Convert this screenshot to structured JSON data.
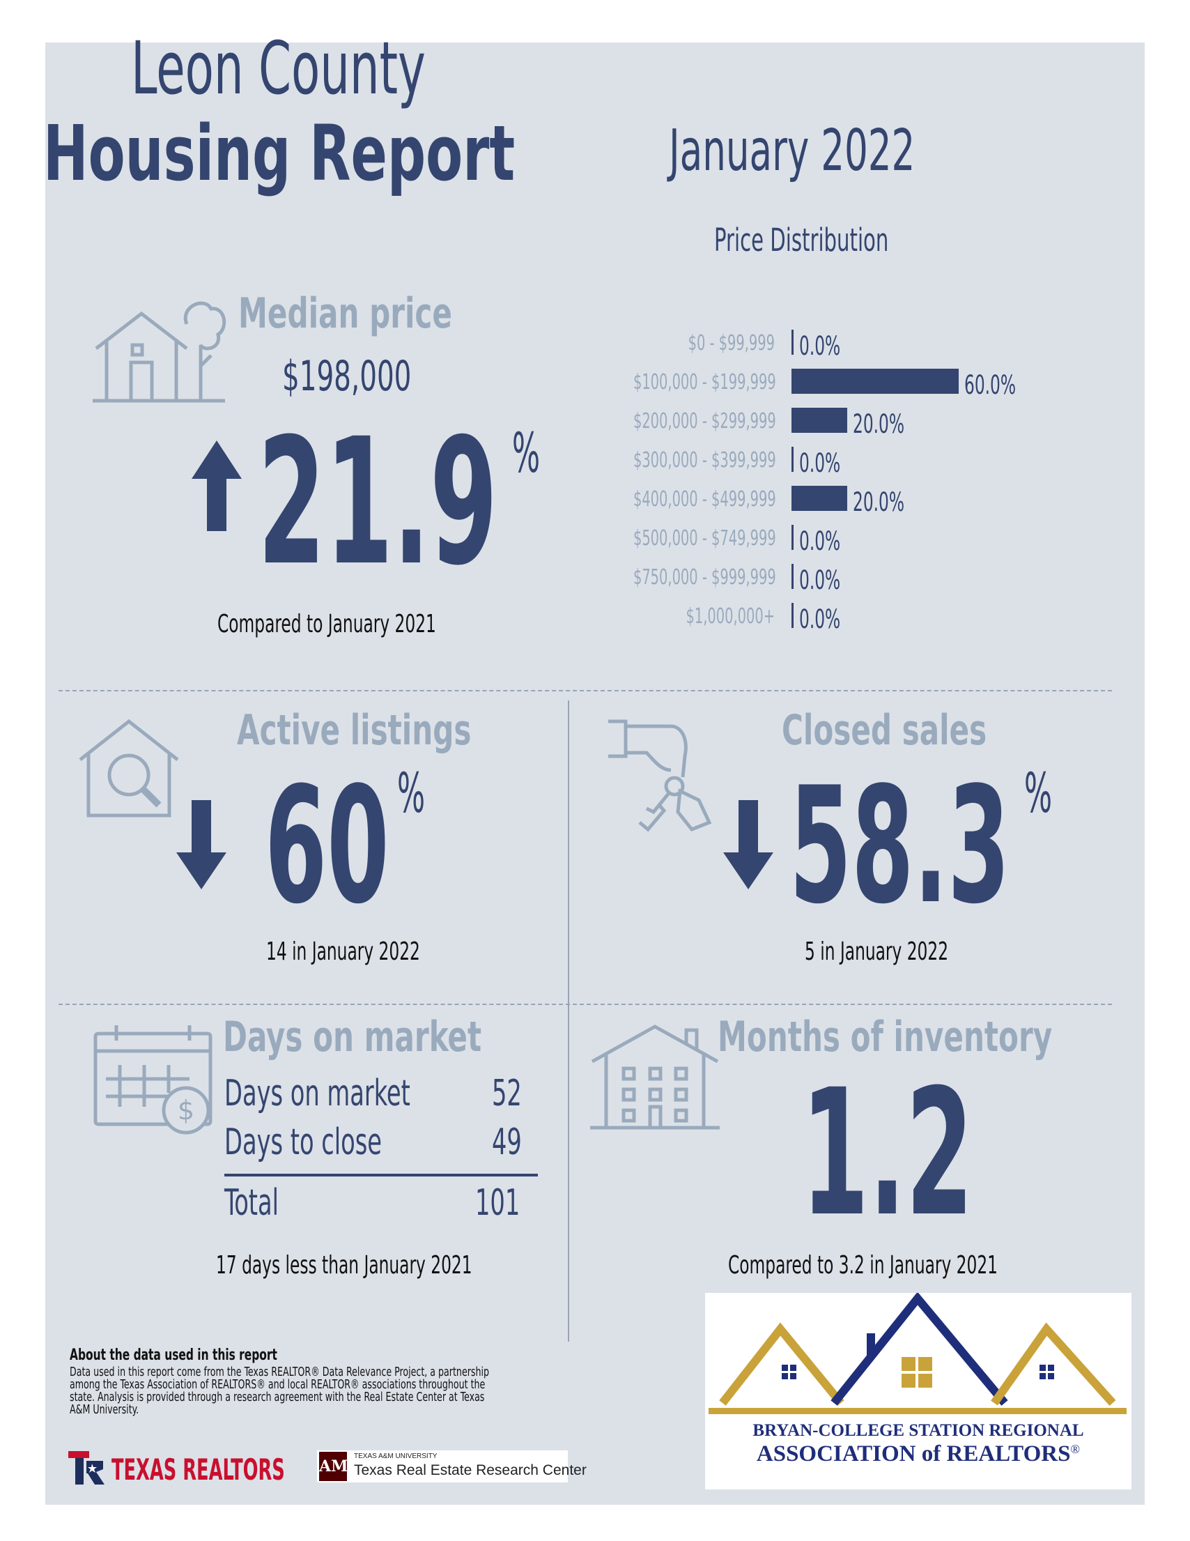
{
  "header": {
    "title_line1": "Leon County",
    "title_line2": "Housing Report",
    "month": "January 2022"
  },
  "median_price": {
    "label": "Median price",
    "value": "$198,000",
    "change": "21.9",
    "change_unit": "%",
    "direction": "up",
    "caption": "Compared to January 2021"
  },
  "price_distribution": {
    "title": "Price Distribution",
    "chart_data": {
      "type": "bar",
      "orientation": "horizontal",
      "title": "Price Distribution",
      "categories": [
        "$0 - $99,999",
        "$100,000 - $199,999",
        "$200,000 - $299,999",
        "$300,000 - $399,999",
        "$400,000 - $499,999",
        "$500,000 - $749,999",
        "$750,000 - $999,999",
        "$1,000,000+"
      ],
      "values": [
        0.0,
        60.0,
        20.0,
        0.0,
        20.0,
        0.0,
        0.0,
        0.0
      ],
      "labels": [
        "0.0%",
        "60.0%",
        "20.0%",
        "0.0%",
        "20.0%",
        "0.0%",
        "0.0%",
        "0.0%"
      ],
      "xlim": [
        0,
        60
      ]
    }
  },
  "active_listings": {
    "label": "Active listings",
    "change": "60",
    "change_unit": "%",
    "direction": "down",
    "caption": "14 in January 2022"
  },
  "closed_sales": {
    "label": "Closed sales",
    "change": "58.3",
    "change_unit": "%",
    "direction": "down",
    "caption": "5 in January 2022"
  },
  "days_on_market": {
    "label": "Days on market",
    "rows": [
      {
        "name": "Days on market",
        "value": "52"
      },
      {
        "name": "Days to close",
        "value": "49"
      }
    ],
    "total_label": "Total",
    "total_value": "101",
    "caption": "17 days less than January 2021"
  },
  "months_inventory": {
    "label": "Months of inventory",
    "value": "1.2",
    "caption": "Compared to 3.2 in January 2021"
  },
  "about": {
    "heading": "About the data used in this report",
    "text": "Data used in this report come from the Texas REALTOR® Data Relevance Project, a partnership among the Texas Association of REALTORS® and local REALTOR® associations throughout the state. Analysis is provided through a research agreement with the Real Estate Center at Texas A&M University."
  },
  "logos": {
    "texas_realtors": "TEXAS REALTORS",
    "tamu_small": "TEXAS A&M UNIVERSITY",
    "tamu_center": "Texas Real Estate Research Center",
    "bcs_line1": "BRYAN-COLLEGE STATION REGIONAL",
    "bcs_line2": "ASSOCIATION of REALTORS",
    "bcs_mark": "®"
  },
  "colors": {
    "navy": "#34456f",
    "gray_blue": "#9aaabd",
    "panel": "#dce1e8",
    "gold": "#c9a23a",
    "dark_blue": "#1f2e7a"
  }
}
